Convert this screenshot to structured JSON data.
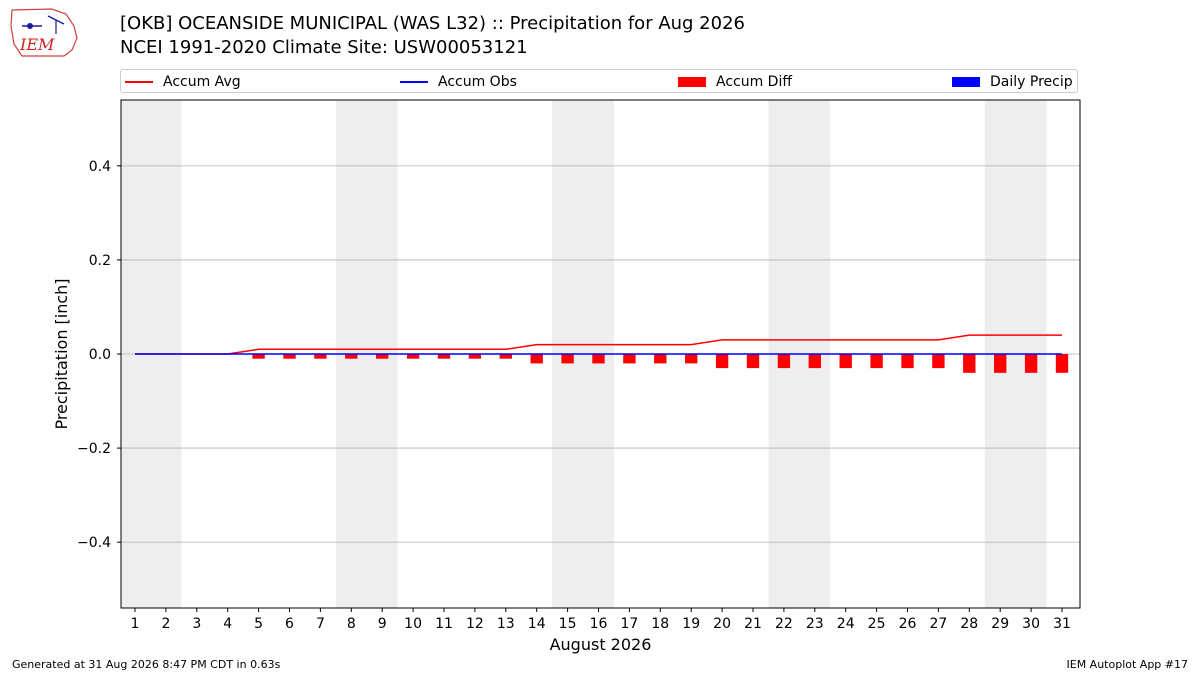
{
  "header": {
    "logo_text": "IEM",
    "title": "[OKB] OCEANSIDE MUNICIPAL (WAS L32) :: Precipitation for Aug 2026",
    "subtitle": "NCEI 1991-2020 Climate Site: USW00053121"
  },
  "footer": {
    "generated": "Generated at 31 Aug 2026 8:47 PM CDT in 0.63s",
    "app": "IEM Autoplot App #17"
  },
  "colors": {
    "accum_avg": "#ff0000",
    "accum_obs": "#0000ff",
    "accum_diff": "#ff0000",
    "daily_precip": "#0000ff",
    "weekend_shade": "#eeeeee",
    "grid": "#b0b0b0"
  },
  "chart_data": {
    "type": "line",
    "xlabel": "August 2026",
    "ylabel": "Precipitation [inch]",
    "ylim": [
      -0.54,
      0.54
    ],
    "yticks": [
      -0.4,
      -0.2,
      0.0,
      0.2,
      0.4
    ],
    "ytick_labels": [
      "−0.4",
      "−0.2",
      "0.0",
      "0.2",
      "0.4"
    ],
    "grid": "y",
    "legend_placement": "top",
    "weekend_spans": [
      [
        1,
        2
      ],
      [
        8,
        9
      ],
      [
        15,
        16
      ],
      [
        22,
        23
      ],
      [
        29,
        30
      ]
    ],
    "x": [
      1,
      2,
      3,
      4,
      5,
      6,
      7,
      8,
      9,
      10,
      11,
      12,
      13,
      14,
      15,
      16,
      17,
      18,
      19,
      20,
      21,
      22,
      23,
      24,
      25,
      26,
      27,
      28,
      29,
      30,
      31
    ],
    "legend": [
      "Accum Avg",
      "Accum Obs",
      "Accum Diff",
      "Daily Precip"
    ],
    "series": [
      {
        "name": "Accum Avg",
        "type": "line",
        "values": [
          0,
          0,
          0,
          0,
          0.01,
          0.01,
          0.01,
          0.01,
          0.01,
          0.01,
          0.01,
          0.01,
          0.01,
          0.02,
          0.02,
          0.02,
          0.02,
          0.02,
          0.02,
          0.03,
          0.03,
          0.03,
          0.03,
          0.03,
          0.03,
          0.03,
          0.03,
          0.04,
          0.04,
          0.04,
          0.04
        ]
      },
      {
        "name": "Accum Obs",
        "type": "line",
        "values": [
          0,
          0,
          0,
          0,
          0,
          0,
          0,
          0,
          0,
          0,
          0,
          0,
          0,
          0,
          0,
          0,
          0,
          0,
          0,
          0,
          0,
          0,
          0,
          0,
          0,
          0,
          0,
          0,
          0,
          0,
          0
        ]
      },
      {
        "name": "Accum Diff",
        "type": "bar",
        "values": [
          0,
          0,
          0,
          0,
          -0.01,
          -0.01,
          -0.01,
          -0.01,
          -0.01,
          -0.01,
          -0.01,
          -0.01,
          -0.01,
          -0.02,
          -0.02,
          -0.02,
          -0.02,
          -0.02,
          -0.02,
          -0.03,
          -0.03,
          -0.03,
          -0.03,
          -0.03,
          -0.03,
          -0.03,
          -0.03,
          -0.04,
          -0.04,
          -0.04,
          -0.04
        ]
      },
      {
        "name": "Daily Precip",
        "type": "bar",
        "values": [
          0,
          0,
          0,
          0,
          0,
          0,
          0,
          0,
          0,
          0,
          0,
          0,
          0,
          0,
          0,
          0,
          0,
          0,
          0,
          0,
          0,
          0,
          0,
          0,
          0,
          0,
          0,
          0,
          0,
          0,
          0
        ]
      }
    ]
  }
}
